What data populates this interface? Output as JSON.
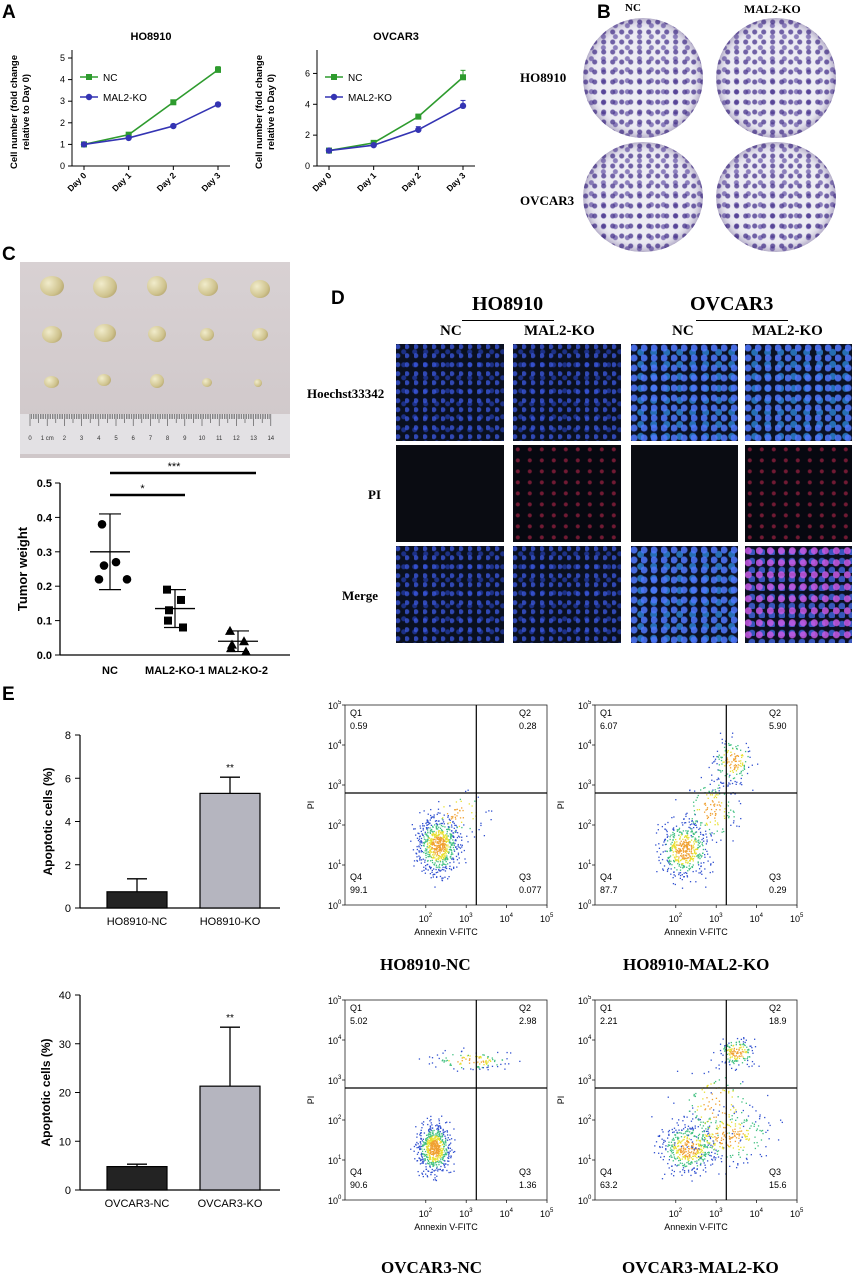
{
  "panels": {
    "A": "A",
    "B": "B",
    "C": "C",
    "D": "D",
    "E": "E"
  },
  "colors": {
    "nc": "#2e9b2e",
    "ko": "#3434b3",
    "bar_dark": "#232323",
    "bar_light": "#b5b5bf"
  },
  "panel_a": {
    "charts": [
      {
        "title": "HO8910",
        "ylabel_line1": "Cell number (fold change",
        "ylabel_line2": "relative to Day 0)",
        "yticks": [
          "0",
          "1",
          "2",
          "3",
          "4",
          "5"
        ],
        "ymax": 5,
        "categories": [
          "Day 0",
          "Day 1",
          "Day 2",
          "Day 3"
        ],
        "series": [
          {
            "name": "NC",
            "values": [
              1.0,
              1.45,
              2.95,
              4.45
            ],
            "err": [
              0.03,
              0.06,
              0.08,
              0.15
            ]
          },
          {
            "name": "MAL2-KO",
            "values": [
              1.0,
              1.3,
              1.85,
              2.85
            ],
            "err": [
              0.03,
              0.05,
              0.06,
              0.05
            ]
          }
        ]
      },
      {
        "title": "OVCAR3",
        "ylabel_line1": "Cell number (fold change",
        "ylabel_line2": "relative to Day 0)",
        "yticks": [
          "0",
          "2",
          "4",
          "6"
        ],
        "ymax": 7,
        "categories": [
          "Day 0",
          "Day 1",
          "Day 2",
          "Day 3"
        ],
        "series": [
          {
            "name": "NC",
            "values": [
              1.0,
              1.5,
              3.2,
              5.75
            ],
            "err": [
              0.05,
              0.1,
              0.15,
              0.45
            ]
          },
          {
            "name": "MAL2-KO",
            "values": [
              1.0,
              1.35,
              2.35,
              3.9
            ],
            "err": [
              0.05,
              0.08,
              0.2,
              0.35
            ]
          }
        ]
      }
    ]
  },
  "panel_b": {
    "col_nc": "NC",
    "col_ko": "MAL2-KO",
    "row1": "HO8910",
    "row2": "OVCAR3"
  },
  "panel_c": {
    "ylabel": "Tumor weight",
    "yticks": [
      "0.0",
      "0.1",
      "0.2",
      "0.3",
      "0.4",
      "0.5"
    ],
    "categories": [
      "NC",
      "MAL2-KO-1",
      "MAL2-KO-2"
    ],
    "points": [
      [
        0.38,
        0.27,
        0.26,
        0.22,
        0.22
      ],
      [
        0.19,
        0.16,
        0.13,
        0.1,
        0.08
      ],
      [
        0.07,
        0.04,
        0.03,
        0.02,
        0.01
      ]
    ],
    "means": [
      0.3,
      0.135,
      0.04
    ],
    "sd": [
      0.11,
      0.055,
      0.03
    ],
    "sig1": "*",
    "sig2": "***",
    "ruler_nums": [
      "0",
      "1 cm",
      "2",
      "3",
      "4",
      "5",
      "6",
      "7",
      "8",
      "9",
      "10",
      "11",
      "12",
      "13",
      "14"
    ]
  },
  "panel_d": {
    "group1": "HO8910",
    "group2": "OVCAR3",
    "nc": "NC",
    "ko": "MAL2-KO",
    "rows": [
      "Hoechst33342",
      "PI",
      "Merge"
    ]
  },
  "panel_e": {
    "bars": [
      {
        "ylabel": "Apoptotic cells (%)",
        "yticks": [
          "0",
          "2",
          "4",
          "6",
          "8"
        ],
        "ymax": 8,
        "categories": [
          "HO8910-NC",
          "HO8910-KO"
        ],
        "values": [
          0.75,
          5.3
        ],
        "err": [
          0.6,
          0.75
        ],
        "sig": "**"
      },
      {
        "ylabel": "Apoptotic cells (%)",
        "yticks": [
          "0",
          "10",
          "20",
          "30",
          "40"
        ],
        "ymax": 40,
        "categories": [
          "OVCAR3-NC",
          "OVCAR3-KO"
        ],
        "values": [
          4.8,
          21.3
        ],
        "err": [
          0.5,
          12.1
        ],
        "sig": "**"
      }
    ],
    "flows": [
      {
        "caption": "HO8910-NC",
        "q1": "0.59",
        "q2": "0.28",
        "q3": "0.077",
        "q4": "99.1",
        "mode": "nc"
      },
      {
        "caption": "HO8910-MAL2-KO",
        "q1": "6.07",
        "q2": "5.90",
        "q3": "0.29",
        "q4": "87.7",
        "mode": "ko"
      },
      {
        "caption": "OVCAR3-NC",
        "q1": "5.02",
        "q2": "2.98",
        "q3": "1.36",
        "q4": "90.6",
        "mode": "nc2"
      },
      {
        "caption": "OVCAR3-MAL2-KO",
        "q1": "2.21",
        "q2": "18.9",
        "q3": "15.6",
        "q4": "63.2",
        "mode": "ko2"
      }
    ],
    "flow_xlabel": "Annexin V-FITC",
    "flow_ylabel": "PI",
    "q_labels": {
      "q1": "Q1",
      "q2": "Q2",
      "q3": "Q3",
      "q4": "Q4"
    },
    "log_ticks": [
      "0",
      "1",
      "2",
      "3",
      "4",
      "5"
    ]
  },
  "chart_data": [
    {
      "type": "line",
      "title": "HO8910",
      "categories": [
        "Day 0",
        "Day 1",
        "Day 2",
        "Day 3"
      ],
      "series": [
        {
          "name": "NC",
          "values": [
            1.0,
            1.45,
            2.95,
            4.45
          ]
        },
        {
          "name": "MAL2-KO",
          "values": [
            1.0,
            1.3,
            1.85,
            2.85
          ]
        }
      ],
      "ylabel": "Cell number (fold change relative to Day 0)",
      "ylim": [
        0,
        5
      ]
    },
    {
      "type": "line",
      "title": "OVCAR3",
      "categories": [
        "Day 0",
        "Day 1",
        "Day 2",
        "Day 3"
      ],
      "series": [
        {
          "name": "NC",
          "values": [
            1.0,
            1.5,
            3.2,
            5.75
          ]
        },
        {
          "name": "MAL2-KO",
          "values": [
            1.0,
            1.35,
            2.35,
            3.9
          ]
        }
      ],
      "ylabel": "Cell number (fold change relative to Day 0)",
      "ylim": [
        0,
        7
      ]
    },
    {
      "type": "scatter",
      "categories": [
        "NC",
        "MAL2-KO-1",
        "MAL2-KO-2"
      ],
      "ylabel": "Tumor weight",
      "ylim": [
        0,
        0.5
      ],
      "means": [
        0.3,
        0.135,
        0.04
      ]
    },
    {
      "type": "bar",
      "categories": [
        "HO8910-NC",
        "HO8910-KO"
      ],
      "values": [
        0.75,
        5.3
      ],
      "ylabel": "Apoptotic cells (%)",
      "ylim": [
        0,
        8
      ]
    },
    {
      "type": "bar",
      "categories": [
        "OVCAR3-NC",
        "OVCAR3-KO"
      ],
      "values": [
        4.8,
        21.3
      ],
      "ylabel": "Apoptotic cells (%)",
      "ylim": [
        0,
        40
      ]
    }
  ]
}
